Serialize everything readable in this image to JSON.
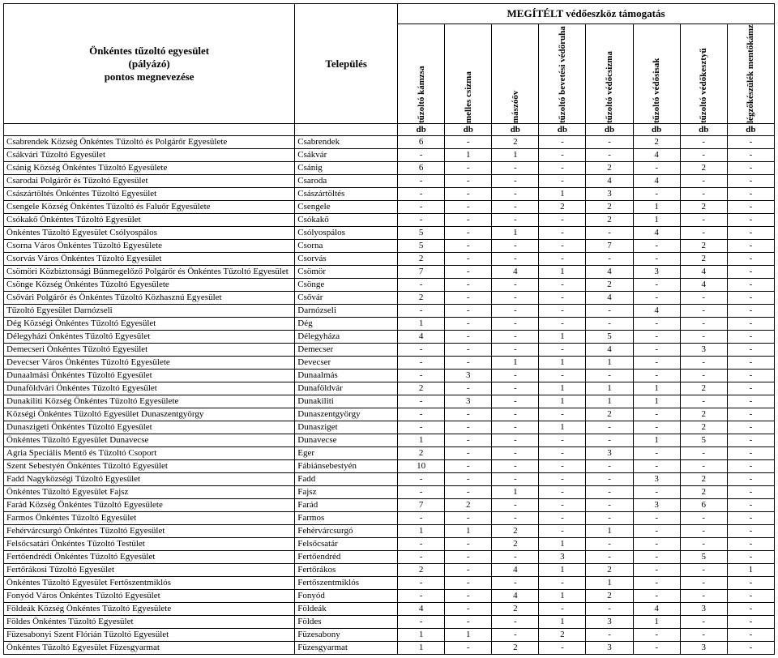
{
  "header": {
    "group_title": "MEGÍTÉLT védőeszköz támogatás",
    "applicant_title_line1": "Önkéntes tűzoltó egyesület",
    "applicant_title_line2": "(pályázó)",
    "applicant_title_line3": "pontos megnevezése",
    "town_title": "Település",
    "unit_label": "db",
    "cols": [
      "tűzoltó kámzsa",
      "melles csizma",
      "mászóöv",
      "tűzoltó bevetési védőruha",
      "tűzoltó védőcsizma",
      "tűzoltó védősisak",
      "tűzoltó védőkesztyű",
      "légzőkészülék mentőkámzsával"
    ]
  },
  "rows": [
    {
      "name": "Csabrendek Község Önkéntes Tűzoltó és Polgárőr Egyesülete",
      "town": "Csabrendek",
      "v": [
        "6",
        "-",
        "2",
        "-",
        "-",
        "2",
        "-",
        "-"
      ]
    },
    {
      "name": "Csákvári Tűzoltó Egyesület",
      "town": "Csákvár",
      "v": [
        "-",
        "1",
        "1",
        "-",
        "-",
        "4",
        "-",
        "-"
      ]
    },
    {
      "name": "Csánig Község Önkéntes Tűzoltó Egyesülete",
      "town": "Csánig",
      "v": [
        "6",
        "-",
        "-",
        "-",
        "2",
        "-",
        "2",
        "-"
      ]
    },
    {
      "name": "Csarodai Polgárőr és Tűzoltó Egyesület",
      "town": "Csaroda",
      "v": [
        "-",
        "-",
        "-",
        "-",
        "4",
        "4",
        "-",
        "-"
      ]
    },
    {
      "name": "Császártöltés Önkéntes Tűzoltó Egyesület",
      "town": "Császártöltés",
      "v": [
        "-",
        "-",
        "-",
        "1",
        "3",
        "-",
        "-",
        "-"
      ]
    },
    {
      "name": "Csengele Község Önkéntes Tűzoltó és Faluőr Egyesülete",
      "town": "Csengele",
      "v": [
        "-",
        "-",
        "-",
        "2",
        "2",
        "1",
        "2",
        "-"
      ]
    },
    {
      "name": "Csókakő Önkéntes Tűzoltó Egyesület",
      "town": "Csókakő",
      "v": [
        "-",
        "-",
        "-",
        "-",
        "2",
        "1",
        "-",
        "-"
      ]
    },
    {
      "name": "Önkéntes Tűzoltó Egyesület Csólyospálos",
      "town": "Csólyospálos",
      "v": [
        "5",
        "-",
        "1",
        "-",
        "-",
        "4",
        "-",
        "-"
      ]
    },
    {
      "name": "Csorna Város Önkéntes Tűzoltó Egyesülete",
      "town": "Csorna",
      "v": [
        "5",
        "-",
        "-",
        "-",
        "7",
        "-",
        "2",
        "-"
      ]
    },
    {
      "name": "Csorvás Város Önkéntes Tűzoltó Egyesület",
      "town": "Csorvás",
      "v": [
        "2",
        "-",
        "-",
        "-",
        "-",
        "-",
        "2",
        "-"
      ]
    },
    {
      "name": "Csömöri Közbiztonsági Bűnmegelőző Polgárőr és Önkéntes Tűzoltó Egyesület",
      "town": "Csömör",
      "v": [
        "7",
        "-",
        "4",
        "1",
        "4",
        "3",
        "4",
        "-"
      ]
    },
    {
      "name": "Csönge Község Önkéntes Tűzoltó Egyesülete",
      "town": "Csönge",
      "v": [
        "-",
        "-",
        "-",
        "-",
        "2",
        "-",
        "4",
        "-"
      ]
    },
    {
      "name": "Csővári Polgárőr és Önkéntes Tűzoltó Közhasznú Egyesület",
      "town": "Csővár",
      "v": [
        "2",
        "-",
        "-",
        "-",
        "4",
        "-",
        "-",
        "-"
      ]
    },
    {
      "name": "Tűzoltó Egyesület Darnózseli",
      "town": "Darnózseli",
      "v": [
        "-",
        "-",
        "-",
        "-",
        "-",
        "4",
        "-",
        "-"
      ]
    },
    {
      "name": "Dég Községi Önkéntes Tűzoltó Egyesület",
      "town": "Dég",
      "v": [
        "1",
        "-",
        "-",
        "-",
        "-",
        "-",
        "-",
        "-"
      ]
    },
    {
      "name": "Délegyházi Önkéntes Tűzoltó Egyesület",
      "town": "Délegyháza",
      "v": [
        "4",
        "-",
        "-",
        "1",
        "5",
        "-",
        "-",
        "-"
      ]
    },
    {
      "name": "Demecseri Önkéntes Tűzoltó Egyesület",
      "town": "Demecser",
      "v": [
        "-",
        "-",
        "-",
        "-",
        "4",
        "-",
        "3",
        "-"
      ]
    },
    {
      "name": "Devecser Város Önkéntes Tűzoltó Egyesülete",
      "town": "Devecser",
      "v": [
        "-",
        "-",
        "1",
        "1",
        "1",
        "-",
        "-",
        "-"
      ]
    },
    {
      "name": "Dunaalmási Önkéntes Tűzoltó Egyesület",
      "town": "Dunaalmás",
      "v": [
        "-",
        "3",
        "-",
        "-",
        "-",
        "-",
        "-",
        "-"
      ]
    },
    {
      "name": "Dunaföldvári Önkéntes Tűzoltó Egyesület",
      "town": "Dunaföldvár",
      "v": [
        "2",
        "-",
        "-",
        "1",
        "1",
        "1",
        "2",
        "-"
      ]
    },
    {
      "name": "Dunakiliti Község Önkéntes Tűzoltó Egyesülete",
      "town": "Dunakiliti",
      "v": [
        "-",
        "3",
        "-",
        "1",
        "1",
        "1",
        "-",
        "-"
      ]
    },
    {
      "name": "Községi Önkéntes Tűzoltó Egyesület Dunaszentgyörgy",
      "town": "Dunaszentgyörgy",
      "v": [
        "-",
        "-",
        "-",
        "-",
        "2",
        "-",
        "2",
        "-"
      ]
    },
    {
      "name": "Dunaszigeti Önkéntes Tűzoltó Egyesület",
      "town": "Dunasziget",
      "v": [
        "-",
        "-",
        "-",
        "1",
        "-",
        "-",
        "2",
        "-"
      ]
    },
    {
      "name": "Önkéntes Tűzoltó Egyesület Dunavecse",
      "town": "Dunavecse",
      "v": [
        "1",
        "-",
        "-",
        "-",
        "-",
        "1",
        "5",
        "-"
      ]
    },
    {
      "name": "Agria Speciális Mentő és Tűzoltó Csoport",
      "town": "Eger",
      "v": [
        "2",
        "-",
        "-",
        "-",
        "3",
        "-",
        "-",
        "-"
      ]
    },
    {
      "name": "Szent Sebestyén Önkéntes Tűzoltó Egyesület",
      "town": "Fábiánsebestyén",
      "v": [
        "10",
        "-",
        "-",
        "-",
        "-",
        "-",
        "-",
        "-"
      ]
    },
    {
      "name": "Fadd Nagyközségi Tűzoltó Egyesület",
      "town": "Fadd",
      "v": [
        "-",
        "-",
        "-",
        "-",
        "-",
        "3",
        "2",
        "-"
      ]
    },
    {
      "name": "Önkéntes Tűzoltó Egyesület Fajsz",
      "town": "Fajsz",
      "v": [
        "-",
        "-",
        "1",
        "-",
        "-",
        "-",
        "2",
        "-"
      ]
    },
    {
      "name": "Farád Község Önkéntes Tűzoltó Egyesülete",
      "town": "Farád",
      "v": [
        "7",
        "2",
        "-",
        "-",
        "-",
        "3",
        "6",
        "-"
      ]
    },
    {
      "name": "Farmos Önkéntes Tűzoltó Egyesület",
      "town": "Farmos",
      "v": [
        "-",
        "-",
        "-",
        "-",
        "-",
        "-",
        "-",
        "-"
      ]
    },
    {
      "name": "Fehérvárcsurgó Önkéntes Tűzoltó Egyesület",
      "town": "Fehérvárcsurgó",
      "v": [
        "1",
        "1",
        "2",
        "-",
        "1",
        "-",
        "-",
        "-"
      ]
    },
    {
      "name": "Felsőcsatári Önkéntes Tűzoltó Testület",
      "town": "Felsőcsatár",
      "v": [
        "-",
        "-",
        "2",
        "1",
        "-",
        "-",
        "-",
        "-"
      ]
    },
    {
      "name": "Fertőendrédi Önkéntes Tűzoltó Egyesület",
      "town": "Fertőendréd",
      "v": [
        "-",
        "-",
        "-",
        "3",
        "-",
        "-",
        "5",
        "-"
      ]
    },
    {
      "name": "Fertőrákosi Tűzoltó Egyesület",
      "town": "Fertőrákos",
      "v": [
        "2",
        "-",
        "4",
        "1",
        "2",
        "-",
        "-",
        "1"
      ]
    },
    {
      "name": "Önkéntes Tűzoltó Egyesület Fertőszentmiklós",
      "town": "Fertőszentmiklós",
      "v": [
        "-",
        "-",
        "-",
        "-",
        "1",
        "-",
        "-",
        "-"
      ]
    },
    {
      "name": "Fonyód Város Önkéntes Tűzoltó Egyesület",
      "town": "Fonyód",
      "v": [
        "-",
        "-",
        "4",
        "1",
        "2",
        "-",
        "-",
        "-"
      ]
    },
    {
      "name": "Földeák Község Önkéntes Tűzoltó Egyesülete",
      "town": "Földeák",
      "v": [
        "4",
        "-",
        "2",
        "-",
        "-",
        "4",
        "3",
        "-"
      ]
    },
    {
      "name": "Földes Önkéntes Tűzoltó Egyesület",
      "town": "Földes",
      "v": [
        "-",
        "-",
        "-",
        "1",
        "3",
        "1",
        "-",
        "-"
      ]
    },
    {
      "name": "Füzesabonyi Szent Flórián Tűzoltó Egyesület",
      "town": "Füzesabony",
      "v": [
        "1",
        "1",
        "-",
        "2",
        "-",
        "-",
        "-",
        "-"
      ]
    },
    {
      "name": "Önkéntes Tűzoltó Egyesület Füzesgyarmat",
      "town": "Füzesgyarmat",
      "v": [
        "1",
        "-",
        "2",
        "-",
        "3",
        "-",
        "3",
        "-"
      ]
    }
  ]
}
